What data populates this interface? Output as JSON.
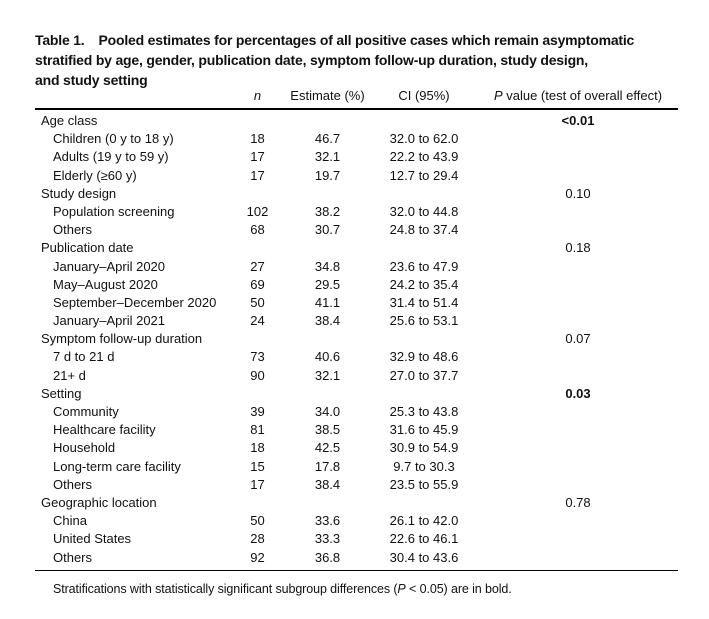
{
  "title": {
    "label": "Table 1.",
    "line1": "Pooled estimates for percentages of all positive cases which remain asymptomatic",
    "line2": "stratified by age, gender, publication date, symptom follow-up duration, study design,",
    "line3": "and study setting"
  },
  "table": {
    "headers": {
      "n": "n",
      "estimate": "Estimate (%)",
      "ci": "CI (95%)",
      "p_italic": "P",
      "p_rest": " value (test of overall effect)"
    },
    "sections": [
      {
        "label": "Age class",
        "p": "<0.01",
        "p_bold": true,
        "rows": [
          {
            "label": "Children (0 y to 18 y)",
            "n": "18",
            "estimate": "46.7",
            "ci": "32.0 to 62.0"
          },
          {
            "label": "Adults (19 y to 59 y)",
            "n": "17",
            "estimate": "32.1",
            "ci": "22.2 to 43.9"
          },
          {
            "label": "Elderly (≥60 y)",
            "n": "17",
            "estimate": "19.7",
            "ci": "12.7 to 29.4"
          }
        ]
      },
      {
        "label": "Study design",
        "p": "0.10",
        "p_bold": false,
        "rows": [
          {
            "label": "Population screening",
            "n": "102",
            "estimate": "38.2",
            "ci": "32.0 to 44.8"
          },
          {
            "label": "Others",
            "n": "68",
            "estimate": "30.7",
            "ci": "24.8 to 37.4"
          }
        ]
      },
      {
        "label": "Publication date",
        "p": "0.18",
        "p_bold": false,
        "rows": [
          {
            "label": "January–April 2020",
            "n": "27",
            "estimate": "34.8",
            "ci": "23.6 to 47.9"
          },
          {
            "label": "May–August 2020",
            "n": "69",
            "estimate": "29.5",
            "ci": "24.2 to 35.4"
          },
          {
            "label": "September–December 2020",
            "n": "50",
            "estimate": "41.1",
            "ci": "31.4 to 51.4"
          },
          {
            "label": "January–April 2021",
            "n": "24",
            "estimate": "38.4",
            "ci": "25.6 to 53.1"
          }
        ]
      },
      {
        "label": "Symptom follow-up duration",
        "p": "0.07",
        "p_bold": false,
        "rows": [
          {
            "label": "7 d to 21 d",
            "n": "73",
            "estimate": "40.6",
            "ci": "32.9 to 48.6"
          },
          {
            "label": "21+ d",
            "n": "90",
            "estimate": "32.1",
            "ci": "27.0 to 37.7"
          }
        ]
      },
      {
        "label": "Setting",
        "p": "0.03",
        "p_bold": true,
        "rows": [
          {
            "label": "Community",
            "n": "39",
            "estimate": "34.0",
            "ci": "25.3 to 43.8"
          },
          {
            "label": "Healthcare facility",
            "n": "81",
            "estimate": "38.5",
            "ci": "31.6 to 45.9"
          },
          {
            "label": "Household",
            "n": "18",
            "estimate": "42.5",
            "ci": "30.9 to 54.9"
          },
          {
            "label": "Long-term care facility",
            "n": "15",
            "estimate": "17.8",
            "ci": "9.7 to 30.3"
          },
          {
            "label": "Others",
            "n": "17",
            "estimate": "38.4",
            "ci": "23.5 to 55.9"
          }
        ]
      },
      {
        "label": "Geographic location",
        "p": "0.78",
        "p_bold": false,
        "rows": [
          {
            "label": "China",
            "n": "50",
            "estimate": "33.6",
            "ci": "26.1 to 42.0"
          },
          {
            "label": "United States",
            "n": "28",
            "estimate": "33.3",
            "ci": "22.6 to 46.1"
          },
          {
            "label": "Others",
            "n": "92",
            "estimate": "36.8",
            "ci": "30.4 to 43.6"
          }
        ]
      }
    ]
  },
  "footnote": {
    "pre": "Stratifications with statistically significant subgroup differences (",
    "p": "P",
    "post": " < 0.05) are in bold."
  }
}
